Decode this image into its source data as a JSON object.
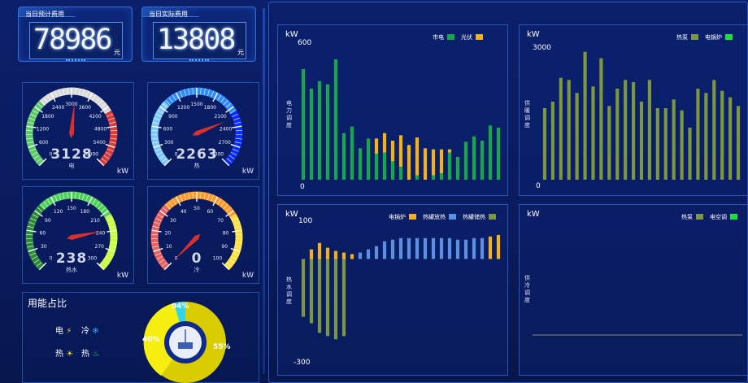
{
  "cards": {
    "planned": {
      "label": "当日预计费用",
      "value": "78986",
      "unit": "元"
    },
    "actual": {
      "label": "当日实际费用",
      "value": "13808",
      "unit": "元"
    }
  },
  "gauges": [
    {
      "key": "electric",
      "name": "电",
      "value": "3128",
      "unit": "kW",
      "ticks": [
        "0",
        "600",
        "1200",
        "1800",
        "2400",
        "3000",
        "3600",
        "4200",
        "4800",
        "5400",
        "6000"
      ],
      "level": 0.52,
      "colors": [
        "#5cc96a",
        "#d9d9d9",
        "#d93b3b"
      ]
    },
    {
      "key": "heat",
      "name": "热",
      "value": "2263",
      "unit": "kW",
      "ticks": [
        "0",
        "300",
        "600",
        "900",
        "1200",
        "1500",
        "1800",
        "2100",
        "2400",
        "2700",
        "3000"
      ],
      "level": 0.75,
      "colors": [
        "#7ec8ff",
        "#2f8cff",
        "#0a2cff"
      ]
    },
    {
      "key": "hotwater",
      "name": "热水",
      "value": "238",
      "unit": "kW",
      "ticks": [
        "0",
        "30",
        "60",
        "90",
        "120",
        "150",
        "180",
        "210",
        "240",
        "270",
        "300"
      ],
      "level": 0.79,
      "colors": [
        "#2a8a3a",
        "#4dd15a",
        "#c8ff3c"
      ]
    },
    {
      "key": "cold",
      "name": "冷",
      "value": "0",
      "unit": "kW",
      "ticks": [
        "0",
        "10",
        "20",
        "30",
        "40",
        "50",
        "60",
        "70",
        "80",
        "90",
        "100"
      ],
      "level": 0.0,
      "colors": [
        "#e86060",
        "#ff9a2a",
        "#ffe040"
      ]
    }
  ],
  "share": {
    "title": "用能占比",
    "legend": [
      {
        "label": "电",
        "icon": "lightning-icon"
      },
      {
        "label": "冷",
        "icon": "snowflake-icon"
      },
      {
        "label": "热",
        "icon": "sun-icon"
      },
      {
        "label": "热",
        "icon": "flame-icon"
      }
    ],
    "pct_small": "04%",
    "pct_left": "40%",
    "pct_right": "55%"
  },
  "chart_data": [
    {
      "type": "bar",
      "key": "power",
      "xlabel": "",
      "ylabel": "电力调度",
      "unit": "kW",
      "ylim": [
        0,
        600
      ],
      "yticks": [
        "600",
        "0"
      ],
      "legend": "top-right",
      "series": [
        {
          "name": "市电",
          "color": "#14a84a",
          "values": [
            510,
            420,
            455,
            440,
            555,
            215,
            245,
            145,
            190,
            120,
            125,
            85,
            60,
            0,
            20,
            0,
            20,
            30,
            125,
            105,
            175,
            200,
            180,
            250,
            240
          ]
        },
        {
          "name": "光伏",
          "color": "#f2b11e",
          "values": [
            0,
            0,
            0,
            0,
            0,
            0,
            0,
            0,
            0,
            70,
            90,
            95,
            145,
            160,
            175,
            145,
            120,
            110,
            15,
            0,
            0,
            0,
            0,
            0,
            0
          ]
        }
      ]
    },
    {
      "type": "bar",
      "key": "heat",
      "xlabel": "",
      "ylabel": "供暖调度",
      "unit": "kW",
      "ylim": [
        0,
        3000
      ],
      "yticks": [
        "3000",
        "0"
      ],
      "legend": "top-right",
      "series": [
        {
          "name": "热泵",
          "color": "#7d9642",
          "values": [
            1650,
            1800,
            2350,
            2300,
            2000,
            2950,
            2150,
            2800,
            1700,
            2100,
            2300,
            2250,
            1800,
            2300,
            1650,
            1650,
            1850,
            1600,
            1200,
            2100,
            2000,
            2300,
            2050,
            1900,
            1700
          ]
        },
        {
          "name": "电锅炉",
          "color": "#1ee03c",
          "values": [
            0,
            0,
            0,
            0,
            0,
            0,
            0,
            0,
            0,
            0,
            0,
            0,
            0,
            0,
            0,
            0,
            0,
            0,
            0,
            0,
            0,
            0,
            0,
            0,
            0
          ]
        }
      ]
    },
    {
      "type": "bar",
      "key": "hotwater",
      "xlabel": "",
      "ylabel": "热水调度",
      "unit": "kW",
      "ylim": [
        -300,
        100
      ],
      "yticks": [
        "100",
        "-300"
      ],
      "legend": "top-right",
      "series": [
        {
          "name": "电锅炉",
          "color": "#f2b11e",
          "values": [
            0,
            30,
            50,
            35,
            25,
            20,
            15,
            0,
            0,
            0,
            0,
            0,
            0,
            0,
            0,
            0,
            0,
            0,
            0,
            0,
            0,
            0,
            0,
            0,
            0
          ]
        },
        {
          "name": "热罐放热",
          "color": "#5b8fe0",
          "values": [
            0,
            0,
            0,
            0,
            0,
            0,
            0,
            20,
            30,
            40,
            55,
            60,
            65,
            65,
            65,
            65,
            65,
            65,
            65,
            60,
            60,
            65,
            65,
            0,
            0
          ]
        },
        {
          "name": "热罐储热",
          "color": "#7d9642",
          "values": [
            -180,
            -200,
            -230,
            -240,
            -250,
            -240,
            0,
            0,
            0,
            0,
            0,
            0,
            0,
            0,
            0,
            0,
            0,
            0,
            0,
            0,
            0,
            0,
            0,
            0,
            0
          ]
        }
      ],
      "extra_top": [
        0,
        0,
        0,
        0,
        0,
        0,
        0,
        0,
        0,
        0,
        0,
        0,
        0,
        0,
        0,
        0,
        0,
        0,
        0,
        0,
        0,
        0,
        0,
        70,
        75
      ]
    },
    {
      "type": "bar",
      "key": "cold",
      "xlabel": "",
      "ylabel": "供冷调度",
      "unit": "kW",
      "ylim": [
        0,
        100
      ],
      "yticks": [],
      "legend": "top-right",
      "series": [
        {
          "name": "热泵",
          "color": "#7d9642",
          "values": [
            0,
            0,
            0,
            0,
            0,
            0,
            0,
            0,
            0,
            0,
            0,
            0,
            0,
            0,
            0,
            0,
            0,
            0,
            0,
            0,
            0,
            0,
            0,
            0,
            0
          ]
        },
        {
          "name": "电空调",
          "color": "#1ee03c",
          "values": [
            0,
            0,
            0,
            0,
            0,
            0,
            0,
            0,
            0,
            0,
            0,
            0,
            0,
            0,
            0,
            0,
            0,
            0,
            0,
            0,
            0,
            0,
            0,
            0,
            0
          ]
        }
      ]
    }
  ]
}
